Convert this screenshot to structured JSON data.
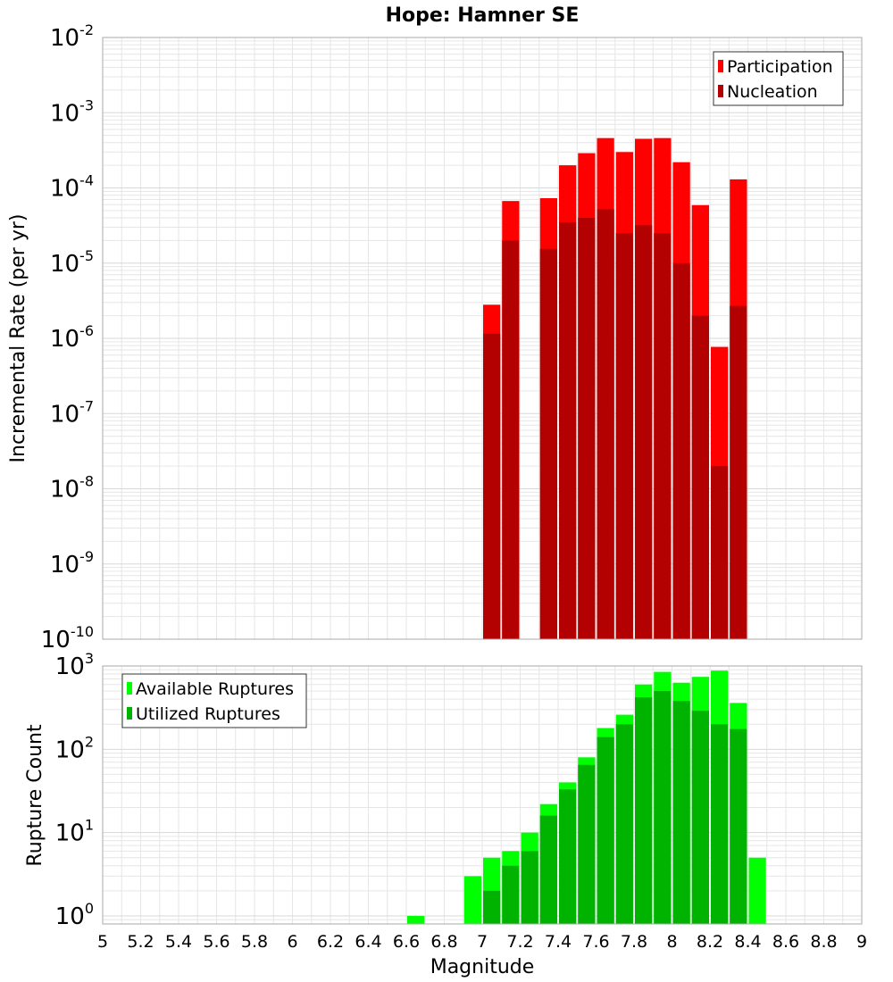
{
  "chart_title": "Hope: Hamner SE",
  "colors": {
    "participation": "#ff0000",
    "nucleation": "#b30000",
    "available": "#00ff00",
    "utilized": "#00b300",
    "grid": "#e6e6e6",
    "frame": "#aaaaaa"
  },
  "chart_data": [
    {
      "type": "bar",
      "title": "Hope: Hamner SE",
      "xlabel": "Magnitude",
      "ylabel": "Incremental Rate (per yr)",
      "y_scale": "log",
      "xlim": [
        5,
        9
      ],
      "ylim": [
        1e-10,
        0.01
      ],
      "x_ticks": [
        "5",
        "5.2",
        "5.4",
        "5.6",
        "5.8",
        "6",
        "6.2",
        "6.4",
        "6.6",
        "6.8",
        "7",
        "7.2",
        "7.4",
        "7.6",
        "7.8",
        "8",
        "8.2",
        "8.4",
        "8.6",
        "8.8",
        "9"
      ],
      "y_ticks": [
        {
          "base": "10",
          "exp": "-10",
          "value": 1e-10
        },
        {
          "base": "10",
          "exp": "-9",
          "value": 1e-09
        },
        {
          "base": "10",
          "exp": "-8",
          "value": 1e-08
        },
        {
          "base": "10",
          "exp": "-7",
          "value": 1e-07
        },
        {
          "base": "10",
          "exp": "-6",
          "value": 1e-06
        },
        {
          "base": "10",
          "exp": "-5",
          "value": 1e-05
        },
        {
          "base": "10",
          "exp": "-4",
          "value": 0.0001
        },
        {
          "base": "10",
          "exp": "-3",
          "value": 0.001
        },
        {
          "base": "10",
          "exp": "-2",
          "value": 0.01
        }
      ],
      "grid": true,
      "legend_position": "top-right",
      "bar_width": 0.1,
      "series": [
        {
          "name": "Participation",
          "color": "#ff0000",
          "x": [
            7.05,
            7.15,
            7.35,
            7.45,
            7.55,
            7.65,
            7.75,
            7.85,
            7.95,
            8.05,
            8.15,
            8.25,
            8.35
          ],
          "values": [
            2.8e-06,
            6.7e-05,
            7.3e-05,
            0.0002,
            0.00029,
            0.00046,
            0.0003,
            0.00045,
            0.00046,
            0.00022,
            5.9e-05,
            7.7e-07,
            0.00013
          ]
        },
        {
          "name": "Nucleation",
          "color": "#b30000",
          "x": [
            7.05,
            7.15,
            7.35,
            7.45,
            7.55,
            7.65,
            7.75,
            7.85,
            7.95,
            8.05,
            8.15,
            8.25,
            8.35
          ],
          "values": [
            1.15e-06,
            2e-05,
            1.55e-05,
            3.5e-05,
            4e-05,
            5.2e-05,
            2.5e-05,
            3.2e-05,
            2.5e-05,
            1e-05,
            2e-06,
            2e-08,
            2.7e-06
          ]
        }
      ]
    },
    {
      "type": "bar",
      "xlabel": "Magnitude",
      "ylabel": "Rupture Count",
      "y_scale": "log",
      "xlim": [
        5,
        9
      ],
      "ylim": [
        0.8,
        1000
      ],
      "x_ticks": [
        "5",
        "5.2",
        "5.4",
        "5.6",
        "5.8",
        "6",
        "6.2",
        "6.4",
        "6.6",
        "6.8",
        "7",
        "7.2",
        "7.4",
        "7.6",
        "7.8",
        "8",
        "8.2",
        "8.4",
        "8.6",
        "8.8",
        "9"
      ],
      "y_ticks": [
        {
          "base": "10",
          "exp": "0",
          "value": 1
        },
        {
          "base": "10",
          "exp": "1",
          "value": 10
        },
        {
          "base": "10",
          "exp": "2",
          "value": 100
        },
        {
          "base": "10",
          "exp": "3",
          "value": 1000
        }
      ],
      "grid": true,
      "legend_position": "top-left",
      "bar_width": 0.1,
      "series": [
        {
          "name": "Available Ruptures",
          "color": "#00ff00",
          "x": [
            6.65,
            6.95,
            7.05,
            7.15,
            7.25,
            7.35,
            7.45,
            7.55,
            7.65,
            7.75,
            7.85,
            7.95,
            8.05,
            8.15,
            8.25,
            8.35,
            8.45
          ],
          "values": [
            1,
            3,
            5,
            6,
            10,
            22,
            40,
            80,
            180,
            260,
            600,
            850,
            630,
            740,
            880,
            360,
            5
          ]
        },
        {
          "name": "Utilized Ruptures",
          "color": "#00b300",
          "x": [
            7.05,
            7.15,
            7.25,
            7.35,
            7.45,
            7.55,
            7.65,
            7.75,
            7.85,
            7.95,
            8.05,
            8.15,
            8.25,
            8.35
          ],
          "values": [
            2,
            4,
            6,
            16,
            33,
            65,
            140,
            200,
            420,
            500,
            380,
            290,
            200,
            175
          ]
        }
      ]
    }
  ]
}
